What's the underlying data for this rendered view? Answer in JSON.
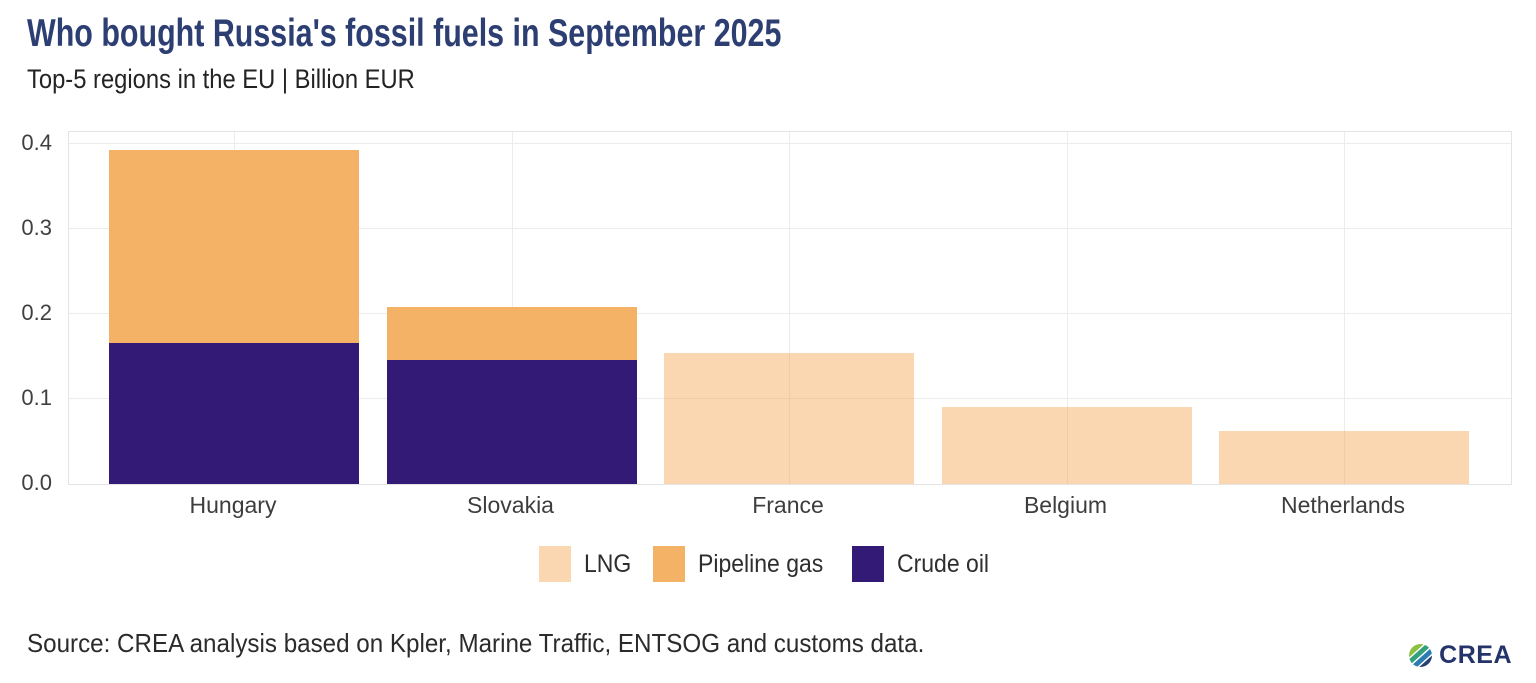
{
  "header": {
    "title": "Who bought Russia's fossil fuels in September 2025",
    "subtitle": "Top-5 regions in the EU | Billion EUR"
  },
  "chart_data": {
    "type": "bar",
    "stacked": true,
    "title": "Who bought Russia's fossil fuels in September 2025",
    "subtitle": "Top-5 regions in the EU | Billion EUR",
    "unit": "Billion EUR",
    "categories": [
      "Hungary",
      "Slovakia",
      "France",
      "Belgium",
      "Netherlands"
    ],
    "series": [
      {
        "name": "LNG",
        "color": "rgba(244,166,82,0.45)",
        "values": [
          0,
          0,
          0.154,
          0.091,
          0.062
        ]
      },
      {
        "name": "Pipeline gas",
        "color": "#f4b266",
        "values": [
          0.227,
          0.062,
          0,
          0,
          0
        ]
      },
      {
        "name": "Crude oil",
        "color": "#331a76",
        "values": [
          0.166,
          0.146,
          0,
          0,
          0
        ]
      }
    ],
    "totals": [
      0.393,
      0.208,
      0.154,
      0.091,
      0.062
    ],
    "ylim": [
      0,
      0.414
    ],
    "yticks": [
      0,
      0.1,
      0.2,
      0.3,
      0.4
    ],
    "ytick_labels": [
      "0.0",
      "0.1",
      "0.2",
      "0.3",
      "0.4"
    ],
    "grid": true,
    "legend_position": "bottom"
  },
  "legend": {
    "items": [
      {
        "label": "LNG",
        "color": "rgba(244,166,82,0.45)"
      },
      {
        "label": "Pipeline gas",
        "color": "#f4b266"
      },
      {
        "label": "Crude oil",
        "color": "#331a76"
      }
    ]
  },
  "footer": {
    "source": "Source: CREA analysis based on Kpler, Marine Traffic, ENTSOG and customs data.",
    "logo_text": "CREA"
  },
  "colors": {
    "title": "#2d3f72",
    "axis_text": "#404040",
    "grid": "#ececec",
    "panel_border": "#e4e4e4",
    "lng": "rgba(244,166,82,0.45)",
    "pipeline_gas": "#f4b266",
    "crude_oil": "#331a76",
    "logo_navy": "#24346b"
  }
}
